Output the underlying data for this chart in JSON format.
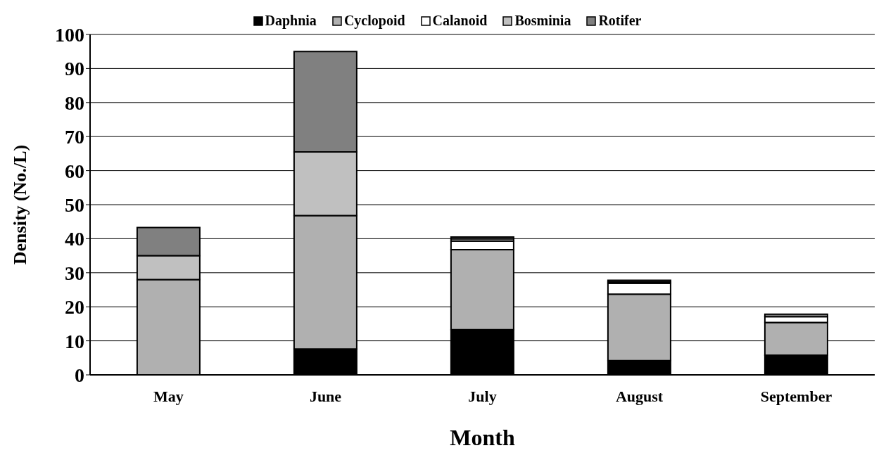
{
  "chart_data": {
    "type": "bar",
    "stacked": true,
    "xlabel": "Month",
    "ylabel": "Density (No./L)",
    "categories": [
      "May",
      "June",
      "July",
      "August",
      "September"
    ],
    "series": [
      {
        "name": "Daphnia",
        "color": "#000000",
        "values": [
          0,
          7.6,
          13.3,
          4.2,
          5.8
        ]
      },
      {
        "name": "Cyclopoid",
        "color": "#b0b0b0",
        "values": [
          28,
          39.2,
          23.5,
          19.5,
          9.6
        ]
      },
      {
        "name": "Calanoid",
        "color": "#ffffff",
        "values": [
          0,
          0,
          2.5,
          3.2,
          1.7
        ]
      },
      {
        "name": "Bosminia",
        "color": "#c0c0c0",
        "values": [
          7,
          18.7,
          0.7,
          0.4,
          0
        ]
      },
      {
        "name": "Rotifer",
        "color": "#808080",
        "values": [
          8.3,
          29.5,
          0.5,
          0.5,
          0.7
        ]
      }
    ],
    "ylim": [
      0,
      100
    ],
    "yticks": [
      0,
      10,
      20,
      30,
      40,
      50,
      60,
      70,
      80,
      90,
      100
    ],
    "grid": "y",
    "legend": "top"
  }
}
